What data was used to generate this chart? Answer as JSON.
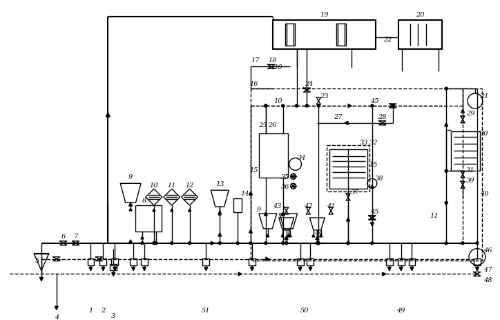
{
  "bg_color": "#ffffff",
  "lc": "#000000",
  "fig_width": 7.24,
  "fig_height": 4.64,
  "dpi": 100,
  "lw": 1.0,
  "lw2": 1.5
}
